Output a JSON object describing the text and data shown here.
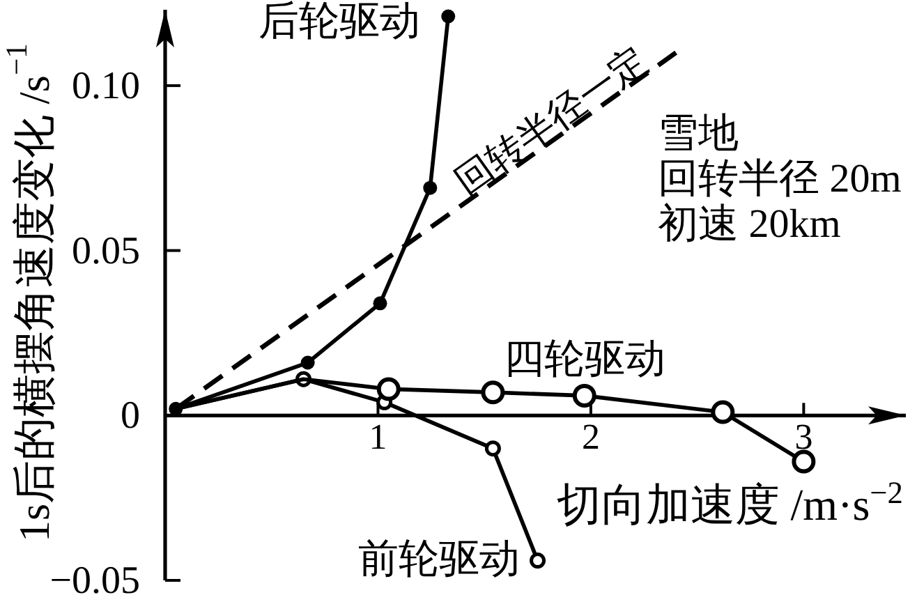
{
  "chart_data": {
    "type": "line",
    "xlabel": "切向加速度 /m·s$^{−2}$",
    "ylabel": "1s后的横摆角速度变化 /s$^{−1}$",
    "xlim": [
      0,
      3.48
    ],
    "ylim": [
      -0.05,
      0.123
    ],
    "xticks": [
      1,
      2,
      3
    ],
    "yticks": [
      {
        "value": -0.05,
        "label": "−0.05"
      },
      0,
      0.05,
      {
        "value": 0.1,
        "label": "0.10"
      }
    ],
    "grid": false,
    "legend": false,
    "series": [
      {
        "name": "后轮驱动",
        "color": "#000000",
        "marker": "circle",
        "x": [
          0.05,
          0.67,
          1.01,
          1.245,
          1.33
        ],
        "values": [
          0.002,
          0.016,
          0.034,
          0.069,
          0.121
        ]
      },
      {
        "name": "回转半径一定",
        "color": "#000000",
        "marker": "none",
        "line_style": "dashed",
        "x": [
          0.05,
          2.4
        ],
        "values": [
          0.002,
          0.11
        ]
      },
      {
        "name": "前轮驱动",
        "color": "#000000",
        "marker": "circle",
        "x": [
          0.05,
          0.65,
          1.03,
          1.54,
          1.75
        ],
        "values": [
          0.002,
          0.011,
          0.004,
          -0.01,
          -0.044
        ]
      },
      {
        "name": "四轮驱动",
        "color": "#000000",
        "marker": "circle",
        "x": [
          0.05,
          0.65,
          1.05,
          1.54,
          1.97,
          2.62,
          3.0
        ],
        "values": [
          0.002,
          0.011,
          0.008,
          0.007,
          0.006,
          0.001,
          -0.014
        ]
      }
    ],
    "annotations": [
      "雪地",
      "回转半径 20m",
      "初速 20km"
    ]
  }
}
